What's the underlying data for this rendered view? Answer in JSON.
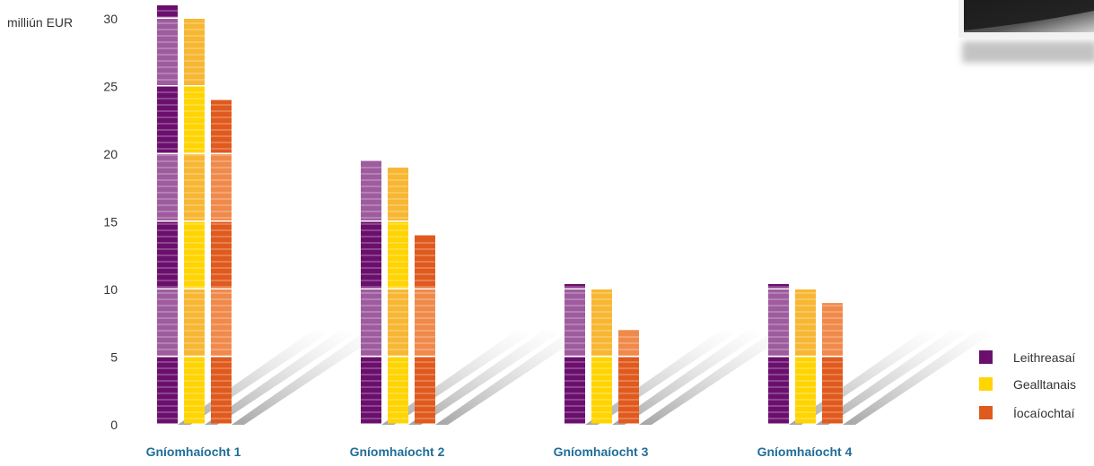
{
  "chart_data": {
    "type": "bar",
    "ylabel": "milliún EUR",
    "ylim": [
      0,
      30
    ],
    "yticks": [
      0,
      5,
      10,
      15,
      20,
      25,
      30
    ],
    "categories": [
      "Gníomhaíocht 1",
      "Gníomhaíocht 2",
      "Gníomhaíocht 3",
      "Gníomhaíocht 4"
    ],
    "series": [
      {
        "name": "Leithreasaí",
        "values": [
          31,
          19.5,
          10.4,
          10.4
        ],
        "color": "#6b0f6e",
        "light": "#9e5c9f"
      },
      {
        "name": "Gealltanais",
        "values": [
          30,
          19,
          10,
          10
        ],
        "color": "#ffd400",
        "light": "#f7b733"
      },
      {
        "name": "Íocaíochtaí",
        "values": [
          24,
          14,
          7,
          9
        ],
        "color": "#e05a1e",
        "light": "#f08a4b"
      }
    ],
    "legend_position": "right"
  },
  "photo": {
    "name": "photo-thumbnail"
  }
}
